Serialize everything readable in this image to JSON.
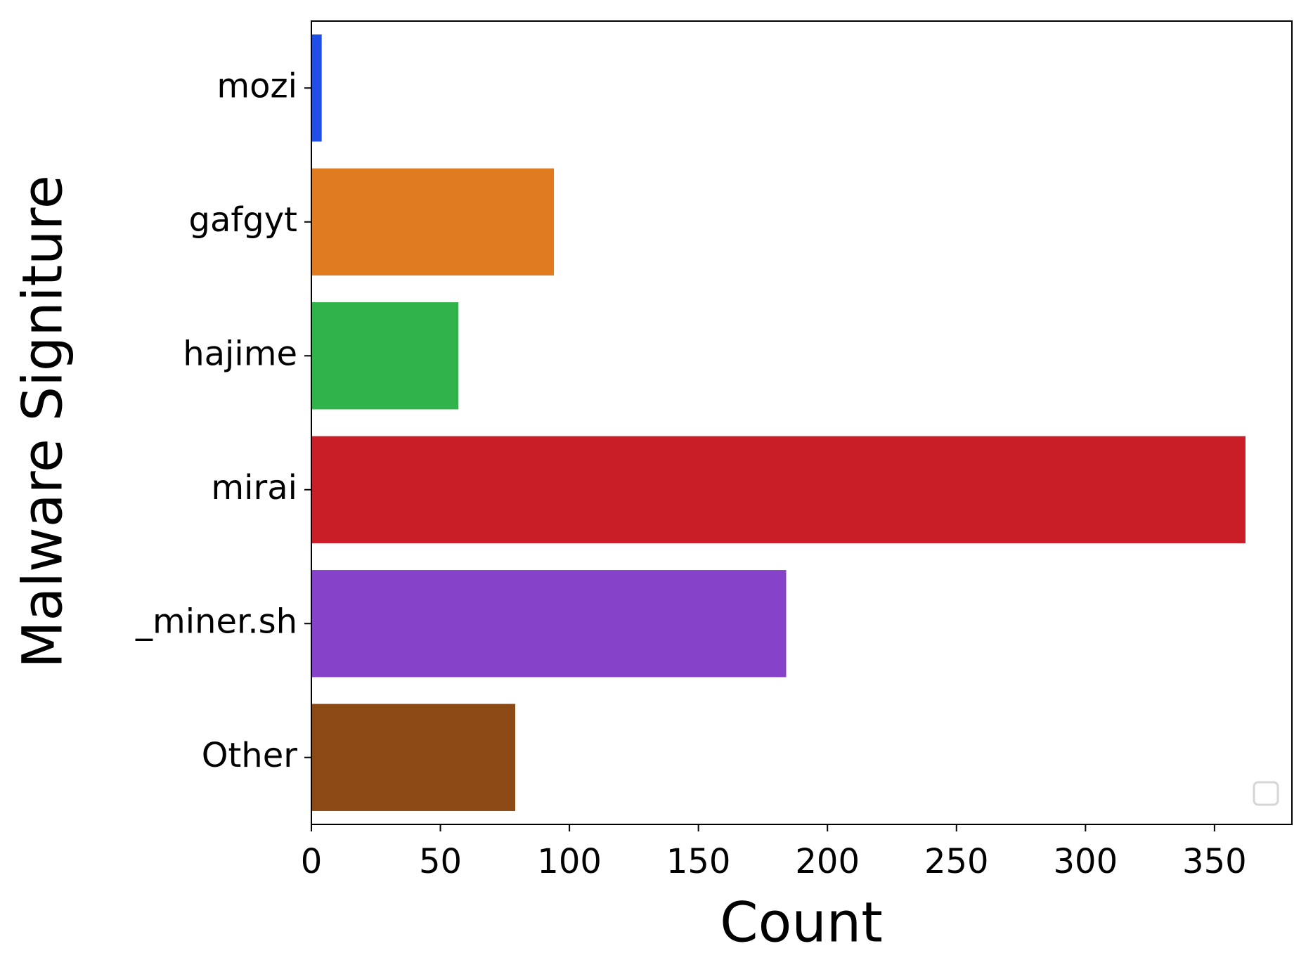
{
  "chart_data": {
    "type": "barh",
    "x_label": "Count",
    "y_label": "Malware Signiture",
    "categories": [
      "mozi",
      "gafgyt",
      "hajime",
      "mirai",
      "_miner.sh",
      "Other"
    ],
    "values": [
      4,
      94,
      57,
      362,
      184,
      79
    ],
    "colors": [
      "#1f4fe8",
      "#e07b1f",
      "#2fb34a",
      "#c91e27",
      "#8642c9",
      "#8b4a14"
    ],
    "xlim": [
      0,
      380
    ],
    "xticks": [
      0,
      50,
      100,
      150,
      200,
      250,
      300,
      350
    ],
    "legend": "lower right"
  }
}
